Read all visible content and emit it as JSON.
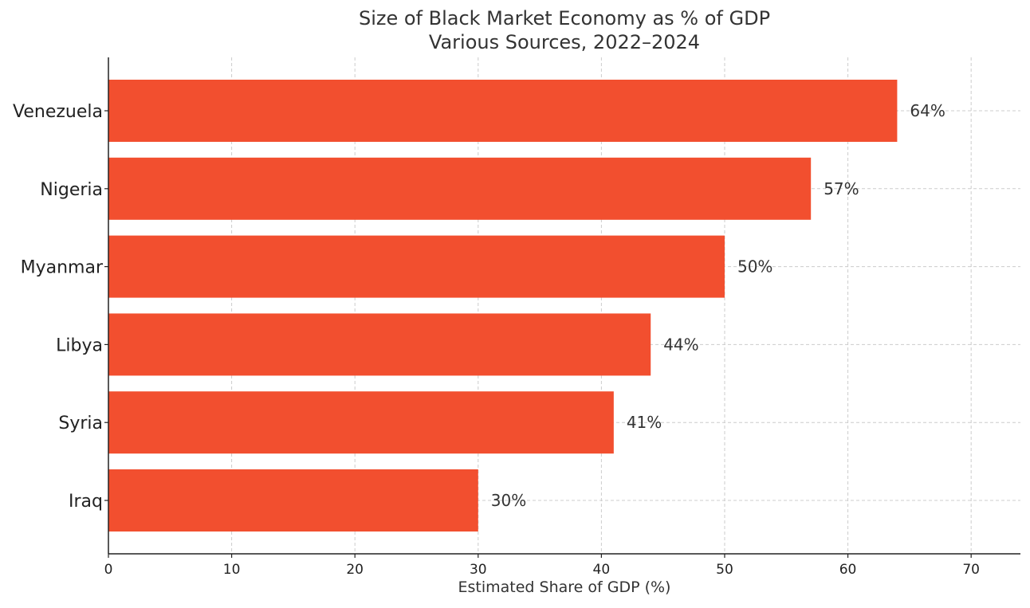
{
  "chart_data": {
    "type": "bar",
    "orientation": "horizontal",
    "title_line1": "Size of Black Market Economy as % of GDP",
    "title_line2": "Various Sources, 2022–2024",
    "xlabel": "Estimated Share of GDP (%)",
    "ylabel": "",
    "categories": [
      "Venezuela",
      "Nigeria",
      "Myanmar",
      "Libya",
      "Syria",
      "Iraq"
    ],
    "values": [
      64,
      57,
      50,
      44,
      41,
      30
    ],
    "data_labels": [
      "64%",
      "57%",
      "50%",
      "44%",
      "41%",
      "30%"
    ],
    "xlim": [
      0,
      74
    ],
    "x_ticks": [
      0,
      10,
      20,
      30,
      40,
      50,
      60,
      70
    ],
    "x_tick_labels": [
      "0",
      "10",
      "20",
      "30",
      "40",
      "50",
      "60",
      "70"
    ],
    "grid": true,
    "bar_color": "#f24f2f"
  }
}
